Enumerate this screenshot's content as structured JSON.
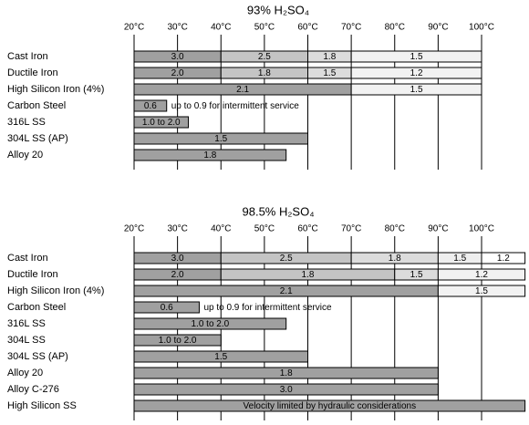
{
  "chart_data": [
    {
      "type": "range-bar",
      "title": "93% H₂SO₄",
      "xlim": [
        20,
        110
      ],
      "xticks": [
        {
          "value": 20,
          "label": "20°C"
        },
        {
          "value": 30,
          "label": "30°C"
        },
        {
          "value": 40,
          "label": "40°C"
        },
        {
          "value": 50,
          "label": "50°C"
        },
        {
          "value": 60,
          "label": "60°C"
        },
        {
          "value": 70,
          "label": "70°C"
        },
        {
          "value": 80,
          "label": "80°C"
        },
        {
          "value": 90,
          "label": "90°C"
        },
        {
          "value": 100,
          "label": "100°C"
        }
      ],
      "rows": [
        {
          "label": "Cast Iron",
          "segments": [
            {
              "start": 20,
              "end": 40,
              "label": "3.0",
              "color": "#a0a0a0"
            },
            {
              "start": 40,
              "end": 60,
              "label": "2.5",
              "color": "#c4c4c4"
            },
            {
              "start": 60,
              "end": 70,
              "label": "1.8",
              "color": "#dcdcdc"
            },
            {
              "start": 70,
              "end": 100,
              "label": "1.5",
              "color": "#f2f2f2"
            }
          ]
        },
        {
          "label": "Ductile Iron",
          "segments": [
            {
              "start": 20,
              "end": 40,
              "label": "2.0",
              "color": "#a0a0a0"
            },
            {
              "start": 40,
              "end": 60,
              "label": "1.8",
              "color": "#c4c4c4"
            },
            {
              "start": 60,
              "end": 70,
              "label": "1.5",
              "color": "#dcdcdc"
            },
            {
              "start": 70,
              "end": 100,
              "label": "1.2",
              "color": "#f2f2f2"
            }
          ]
        },
        {
          "label": "High Silicon Iron (4%)",
          "segments": [
            {
              "start": 20,
              "end": 70,
              "label": "2.1",
              "color": "#a0a0a0"
            },
            {
              "start": 70,
              "end": 100,
              "label": "1.5",
              "color": "#f2f2f2"
            }
          ]
        },
        {
          "label": "Carbon Steel",
          "note": "up to 0.9 for intermittent service",
          "segments": [
            {
              "start": 20,
              "end": 27.5,
              "label": "0.6",
              "color": "#a0a0a0"
            }
          ]
        },
        {
          "label": "316L SS",
          "segments": [
            {
              "start": 20,
              "end": 32.5,
              "label": "1.0 to 2.0",
              "color": "#a0a0a0"
            }
          ]
        },
        {
          "label": "304L SS (AP)",
          "segments": [
            {
              "start": 20,
              "end": 60,
              "label": "1.5",
              "color": "#a0a0a0"
            }
          ]
        },
        {
          "label": "Alloy 20",
          "segments": [
            {
              "start": 20,
              "end": 55,
              "label": "1.8",
              "color": "#a0a0a0"
            }
          ]
        }
      ]
    },
    {
      "type": "range-bar",
      "title": "98.5% H₂SO₄",
      "xlim": [
        20,
        110
      ],
      "xticks": [
        {
          "value": 20,
          "label": "20°C"
        },
        {
          "value": 30,
          "label": "30°C"
        },
        {
          "value": 40,
          "label": "40°C"
        },
        {
          "value": 50,
          "label": "50°C"
        },
        {
          "value": 60,
          "label": "60°C"
        },
        {
          "value": 70,
          "label": "70°C"
        },
        {
          "value": 80,
          "label": "80°C"
        },
        {
          "value": 90,
          "label": "90°C"
        },
        {
          "value": 100,
          "label": "100°C"
        }
      ],
      "rows": [
        {
          "label": "Cast Iron",
          "segments": [
            {
              "start": 20,
              "end": 40,
              "label": "3.0",
              "color": "#a0a0a0"
            },
            {
              "start": 40,
              "end": 70,
              "label": "2.5",
              "color": "#c4c4c4"
            },
            {
              "start": 70,
              "end": 90,
              "label": "1.8",
              "color": "#dcdcdc"
            },
            {
              "start": 90,
              "end": 100,
              "label": "1.5",
              "color": "#eeeeee"
            },
            {
              "start": 100,
              "end": 110,
              "label": "1.2",
              "color": "#ffffff"
            }
          ]
        },
        {
          "label": "Ductile Iron",
          "segments": [
            {
              "start": 20,
              "end": 40,
              "label": "2.0",
              "color": "#a0a0a0"
            },
            {
              "start": 40,
              "end": 80,
              "label": "1.8",
              "color": "#c4c4c4"
            },
            {
              "start": 80,
              "end": 90,
              "label": "1.5",
              "color": "#dcdcdc"
            },
            {
              "start": 90,
              "end": 110,
              "label": "1.2",
              "color": "#f2f2f2"
            }
          ]
        },
        {
          "label": "High Silicon Iron (4%)",
          "segments": [
            {
              "start": 20,
              "end": 90,
              "label": "2.1",
              "color": "#a0a0a0"
            },
            {
              "start": 90,
              "end": 110,
              "label": "1.5",
              "color": "#f2f2f2"
            }
          ]
        },
        {
          "label": "Carbon Steel",
          "note": "up to 0.9 for intermittent service",
          "segments": [
            {
              "start": 20,
              "end": 35,
              "label": "0.6",
              "color": "#a0a0a0"
            }
          ]
        },
        {
          "label": "316L SS",
          "segments": [
            {
              "start": 20,
              "end": 55,
              "label": "1.0 to 2.0",
              "color": "#a0a0a0"
            }
          ]
        },
        {
          "label": "304L SS",
          "segments": [
            {
              "start": 20,
              "end": 40,
              "label": "1.0 to 2.0",
              "color": "#a0a0a0"
            }
          ]
        },
        {
          "label": "304L SS (AP)",
          "segments": [
            {
              "start": 20,
              "end": 60,
              "label": "1.5",
              "color": "#a0a0a0"
            }
          ]
        },
        {
          "label": "Alloy 20",
          "segments": [
            {
              "start": 20,
              "end": 90,
              "label": "1.8",
              "color": "#a0a0a0"
            }
          ]
        },
        {
          "label": "Alloy C-276",
          "segments": [
            {
              "start": 20,
              "end": 90,
              "label": "3.0",
              "color": "#a0a0a0"
            }
          ]
        },
        {
          "label": "High Silicon SS",
          "segments": [
            {
              "start": 20,
              "end": 110,
              "label": "Velocity limited by hydraulic considerations",
              "color": "#a0a0a0"
            }
          ]
        }
      ]
    }
  ]
}
